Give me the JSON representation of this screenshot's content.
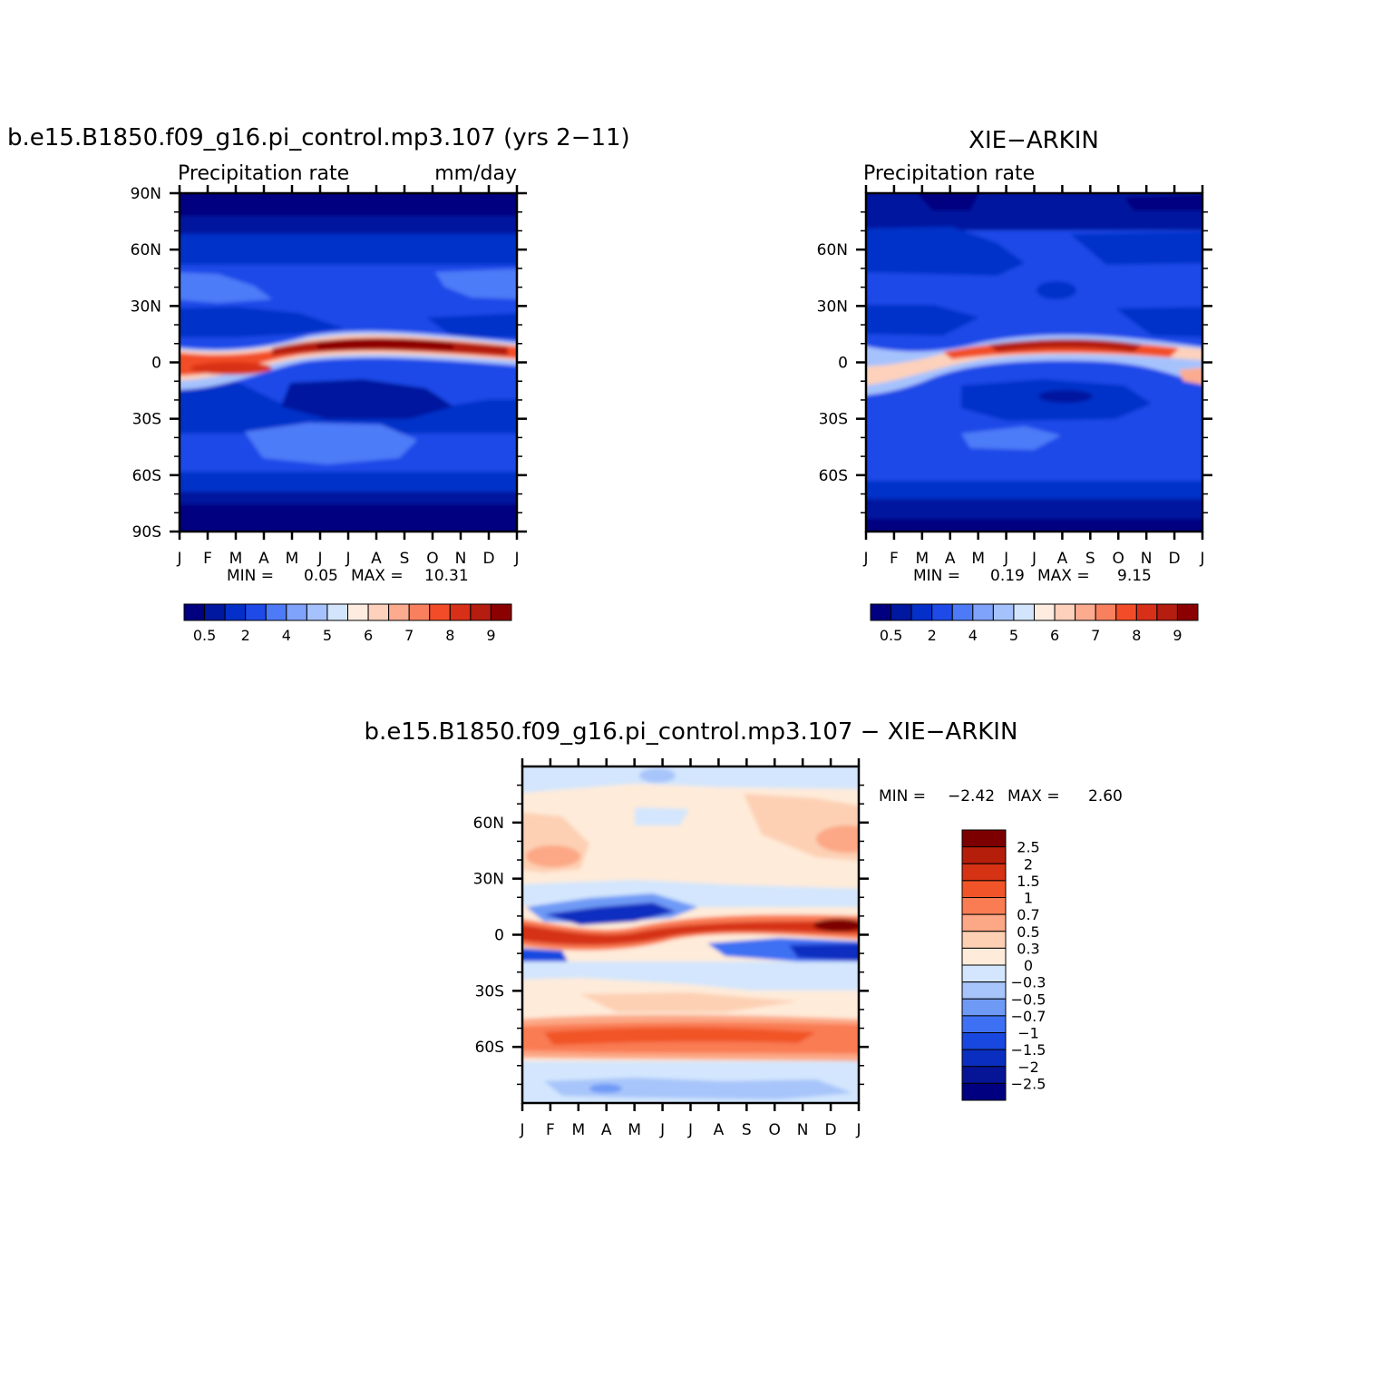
{
  "palette": {
    "seq": [
      "#000080",
      "#00179f",
      "#0430c9",
      "#1e4ae8",
      "#4d7bf8",
      "#7fa3fb",
      "#a6c2fd",
      "#d3e5fc",
      "#feece0",
      "#fdd1bb",
      "#fcab8f",
      "#f9805f",
      "#f24d28",
      "#d83018",
      "#b41d0f",
      "#8b0000"
    ],
    "div": [
      "#000080",
      "#061595",
      "#0a2ec0",
      "#1948e0",
      "#3e70f3",
      "#6e9af6",
      "#a7c5fb",
      "#d3e6fd",
      "#feebd9",
      "#fdd0b4",
      "#fca785",
      "#f97c52",
      "#f15428",
      "#d63214",
      "#b51e0b",
      "#7d0000"
    ]
  },
  "chart_data": [
    {
      "type": "heatmap",
      "id": "model",
      "title": "b.e15.B1850.f09_g16.pi_control.mp3.107 (yrs 2−11)",
      "subtitle_left": "Precipitation rate",
      "subtitle_right": "mm/day",
      "x_labels": [
        "J",
        "F",
        "M",
        "A",
        "M",
        "J",
        "J",
        "A",
        "S",
        "O",
        "N",
        "D",
        "J"
      ],
      "y_labels": [
        "90N",
        "60N",
        "30N",
        "0",
        "30S",
        "60S",
        "90S"
      ],
      "ylim": [
        -90,
        90
      ],
      "stats_label": "MIN =",
      "stats_min": "0.05",
      "stats_max_label": "MAX =",
      "stats_max": "10.31",
      "colorbar_labels": [
        "0.5",
        "2",
        "4",
        "5",
        "6",
        "7",
        "8",
        "9"
      ],
      "colorbar_orientation": "horizontal",
      "features": {
        "itcz_peak": 10.31,
        "itcz_peak_month": "Aug",
        "min": 0.05
      }
    },
    {
      "type": "heatmap",
      "id": "obs",
      "title": "XIE−ARKIN",
      "subtitle_left": "Precipitation rate",
      "subtitle_right": "",
      "x_labels": [
        "J",
        "F",
        "M",
        "A",
        "M",
        "J",
        "J",
        "A",
        "S",
        "O",
        "N",
        "D",
        "J"
      ],
      "y_labels": [
        "60N",
        "30N",
        "0",
        "30S",
        "60S"
      ],
      "ylim": [
        -90,
        90
      ],
      "stats_label": "MIN =",
      "stats_min": "0.19",
      "stats_max_label": "MAX =",
      "stats_max": "9.15",
      "colorbar_labels": [
        "0.5",
        "2",
        "4",
        "5",
        "6",
        "7",
        "8",
        "9"
      ],
      "colorbar_orientation": "horizontal",
      "features": {
        "itcz_peak": 9.15,
        "itcz_peak_month": "Aug",
        "min": 0.19
      }
    },
    {
      "type": "heatmap",
      "id": "diff",
      "title": "b.e15.B1850.f09_g16.pi_control.mp3.107 − XIE−ARKIN",
      "subtitle_left": "",
      "subtitle_right": "",
      "x_labels": [
        "J",
        "F",
        "M",
        "A",
        "M",
        "J",
        "J",
        "A",
        "S",
        "O",
        "N",
        "D",
        "J"
      ],
      "y_labels": [
        "60N",
        "30N",
        "0",
        "30S",
        "60S"
      ],
      "ylim": [
        -90,
        90
      ],
      "stats_label": "MIN =",
      "stats_min": "−2.42",
      "stats_max_label": "MAX =",
      "stats_max": "2.60",
      "colorbar_labels": [
        "2.5",
        "2",
        "1.5",
        "1",
        "0.7",
        "0.5",
        "0.3",
        "0",
        "−0.3",
        "−0.5",
        "−0.7",
        "−1",
        "−1.5",
        "−2",
        "−2.5"
      ],
      "colorbar_orientation": "vertical",
      "features": {
        "max": 2.6,
        "min": -2.42
      }
    }
  ]
}
